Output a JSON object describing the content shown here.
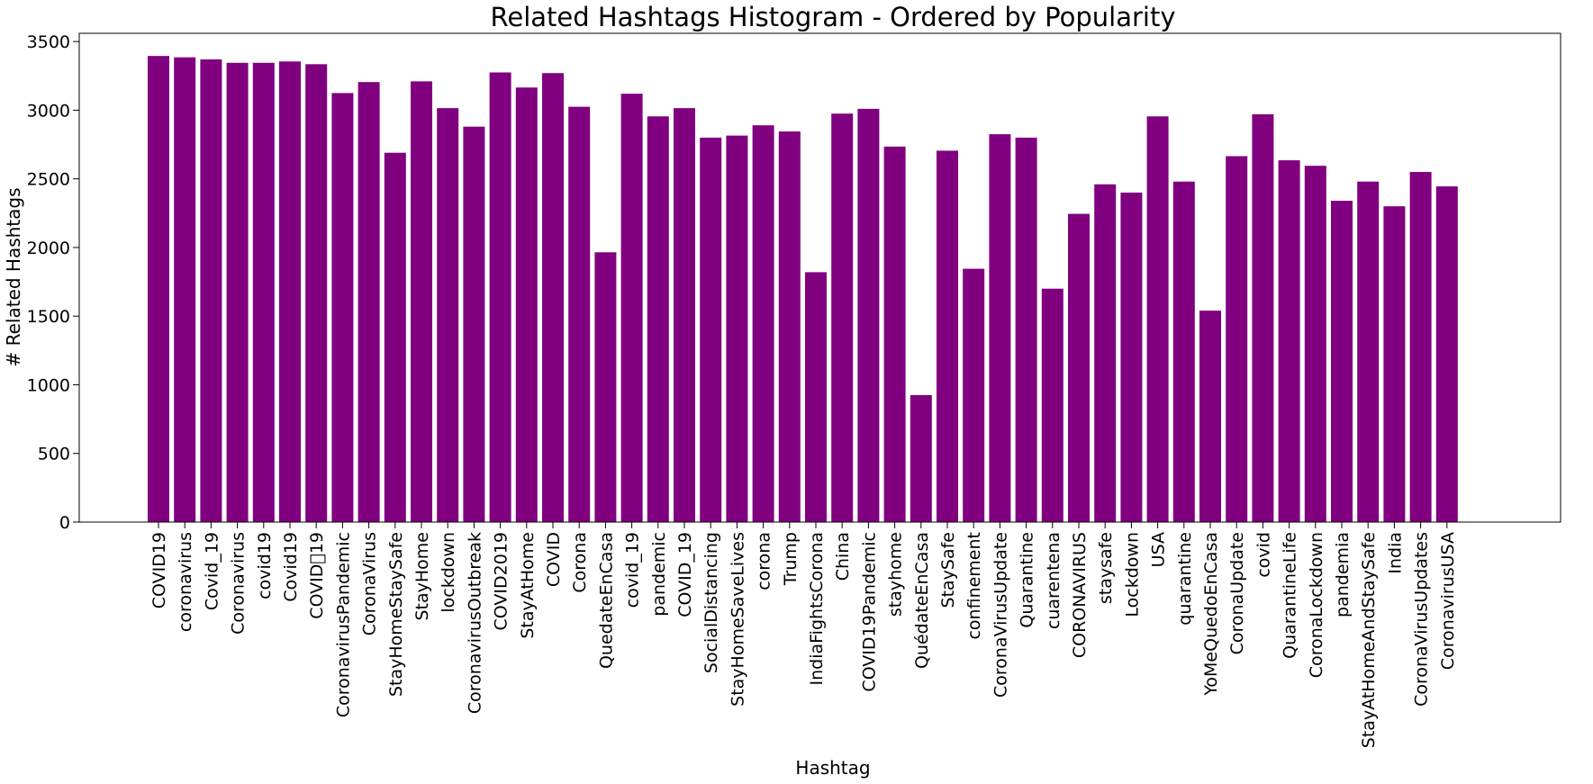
{
  "chart_data": {
    "type": "bar",
    "title": "Related Hashtags Histogram - Ordered by Popularity",
    "xlabel": "Hashtag",
    "ylabel": "# Related Hashtags",
    "ylim": [
      0,
      3560
    ],
    "yticks": [
      0,
      500,
      1000,
      1500,
      2000,
      2500,
      3000,
      3500
    ],
    "grid": false,
    "bar_color": "#800080",
    "categories": [
      "COVID19",
      "coronavirus",
      "Covid_19",
      "Coronavirus",
      "covid19",
      "Covid19",
      "COVID⃢19",
      "CoronavirusPandemic",
      "CoronaVirus",
      "StayHomeStaySafe",
      "StayHome",
      "lockdown",
      "CoronavirusOutbreak",
      "COVID2019",
      "StayAtHome",
      "COVID",
      "Corona",
      "QuedateEnCasa",
      "covid_19",
      "pandemic",
      "COVID_19",
      "SocialDistancing",
      "StayHomeSaveLives",
      "corona",
      "Trump",
      "IndiaFightsCorona",
      "China",
      "COVID19Pandemic",
      "stayhome",
      "QuédateEnCasa",
      "StaySafe",
      "confinement",
      "CoronaVirusUpdate",
      "Quarantine",
      "cuarentena",
      "CORONAVIRUS",
      "staysafe",
      "Lockdown",
      "USA",
      "quarantine",
      "YoMeQuedoEnCasa",
      "CoronaUpdate",
      "covid",
      "QuarantineLife",
      "CoronaLockdown",
      "pandemia",
      "StayAtHomeAndStaySafe",
      "India",
      "CoronaVirusUpdates",
      "CoronavirusUSA"
    ],
    "values": [
      3395,
      3385,
      3370,
      3345,
      3345,
      3355,
      3335,
      3125,
      3205,
      2690,
      3210,
      3015,
      2880,
      3275,
      3165,
      3270,
      3025,
      1965,
      3120,
      2955,
      3015,
      2800,
      2815,
      2890,
      2845,
      1820,
      2975,
      3010,
      2735,
      925,
      2705,
      1845,
      2825,
      2800,
      1700,
      2245,
      2460,
      2400,
      2955,
      2480,
      1540,
      2665,
      2970,
      2635,
      2595,
      2340,
      2480,
      2300,
      2550,
      2445
    ]
  }
}
